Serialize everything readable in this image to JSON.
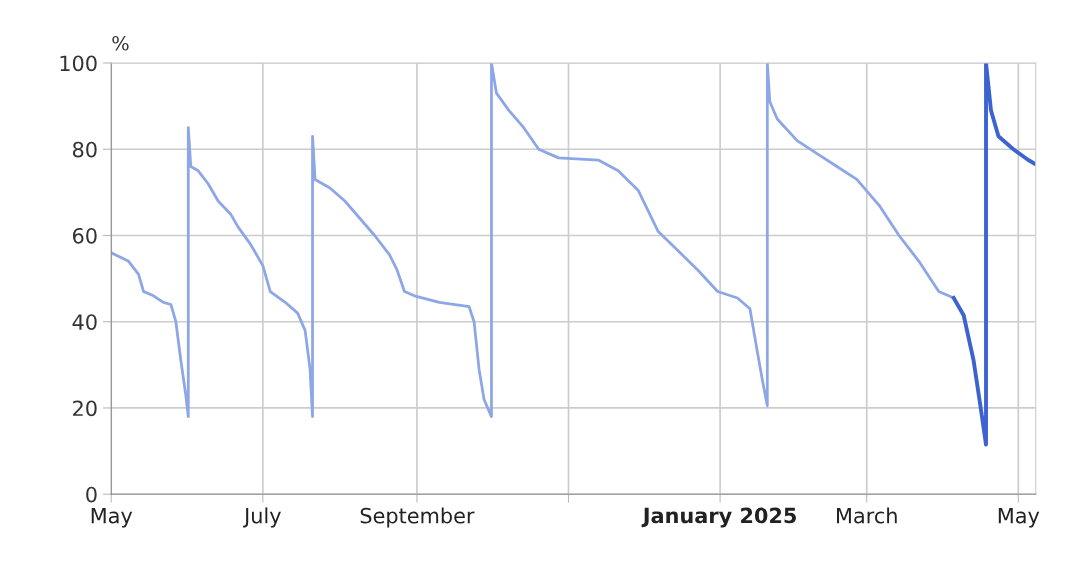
{
  "chart_data": {
    "type": "line",
    "ylabel": "%",
    "xlim": [
      "2024-05-01",
      "2025-05-08"
    ],
    "xticks": [
      {
        "value": "2024-05-01",
        "label": "May"
      },
      {
        "value": "2024-07-01",
        "label": "July"
      },
      {
        "value": "2024-09-01",
        "label": "September"
      },
      {
        "value": "2024-11-01",
        "label": null
      },
      {
        "value": "2025-01-01",
        "label": "January 2025"
      },
      {
        "value": "2025-03-01",
        "label": "March"
      },
      {
        "value": "2025-05-01",
        "label": "May"
      }
    ],
    "ylim": [
      0,
      100
    ],
    "yticks": [
      0,
      20,
      40,
      60,
      80,
      100
    ],
    "grid": true,
    "legend": false,
    "marker": "none",
    "line_style": "solid",
    "series": [
      {
        "color": "#8da6e6",
        "x": [
          "2024-05-01",
          "2024-05-08",
          "2024-05-12",
          "2024-05-14",
          "2024-05-18",
          "2024-05-22",
          "2024-05-25",
          "2024-05-27",
          "2024-05-29",
          "2024-05-31",
          "2024-06-01",
          "2024-06-01",
          "2024-06-02",
          "2024-06-05",
          "2024-06-09",
          "2024-06-13",
          "2024-06-18",
          "2024-06-21",
          "2024-06-26",
          "2024-07-01",
          "2024-07-04",
          "2024-07-10",
          "2024-07-15",
          "2024-07-18",
          "2024-07-20",
          "2024-07-21",
          "2024-07-21",
          "2024-07-22",
          "2024-07-28",
          "2024-08-03",
          "2024-08-09",
          "2024-08-15",
          "2024-08-21",
          "2024-08-24",
          "2024-08-27",
          "2024-08-31",
          "2024-09-10",
          "2024-09-22",
          "2024-09-24",
          "2024-09-26",
          "2024-09-28",
          "2024-10-01",
          "2024-10-01",
          "2024-10-03",
          "2024-10-08",
          "2024-10-14",
          "2024-10-20",
          "2024-10-28",
          "2024-11-13",
          "2024-11-21",
          "2024-11-29",
          "2024-12-07",
          "2024-12-15",
          "2024-12-23",
          "2024-12-31",
          "2025-01-08",
          "2025-01-13",
          "2025-01-16",
          "2025-01-18",
          "2025-01-20",
          "2025-01-20",
          "2025-01-21",
          "2025-01-24",
          "2025-02-01",
          "2025-02-09",
          "2025-02-17",
          "2025-02-25",
          "2025-03-06",
          "2025-03-14",
          "2025-03-22",
          "2025-03-30",
          "2025-04-05"
        ],
        "values": [
          56,
          54,
          51,
          47,
          46,
          44.5,
          44,
          40,
          31,
          23,
          18,
          85,
          76,
          75,
          72,
          68,
          65,
          62,
          58,
          53,
          47,
          44.5,
          42,
          38,
          29,
          18,
          83,
          73,
          71,
          68,
          64,
          60,
          55.5,
          52,
          47,
          46,
          44.5,
          43.5,
          40,
          29,
          22,
          18,
          100,
          93,
          89,
          85,
          80,
          78,
          77.5,
          75,
          70.5,
          61,
          56.5,
          52,
          47,
          45.5,
          43,
          33,
          26.5,
          20.5,
          100,
          91,
          87,
          82,
          79,
          76,
          73,
          67,
          60,
          54,
          47,
          45.5
        ]
      },
      {
        "color": "#3c63d0",
        "x": [
          "2025-04-05",
          "2025-04-09",
          "2025-04-13",
          "2025-04-16",
          "2025-04-18",
          "2025-04-18",
          "2025-04-20",
          "2025-04-23",
          "2025-04-29",
          "2025-05-05",
          "2025-05-08"
        ],
        "values": [
          45.5,
          41.5,
          31,
          19.5,
          11.5,
          100,
          89,
          83,
          80,
          77.5,
          76.5
        ]
      }
    ]
  }
}
